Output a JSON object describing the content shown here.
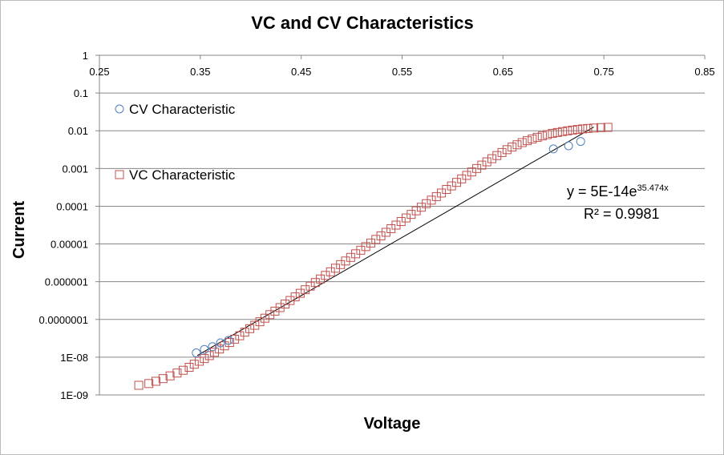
{
  "chart_data": {
    "type": "scatter",
    "title": "VC and CV Characteristics",
    "xlabel": "Voltage",
    "ylabel": "Current",
    "xlim": [
      0.25,
      0.85
    ],
    "x_ticks": [
      0.25,
      0.35,
      0.45,
      0.55,
      0.65,
      0.75,
      0.85
    ],
    "x_tick_labels": [
      "0.25",
      "0.35",
      "0.45",
      "0.55",
      "0.65",
      "0.75",
      "0.85"
    ],
    "ylim": [
      1e-09,
      1
    ],
    "y_scale": "log",
    "y_ticks": [
      1,
      0.1,
      0.01,
      0.001,
      0.0001,
      1e-05,
      1e-06,
      1e-07,
      1e-08,
      1e-09
    ],
    "y_tick_labels": [
      "1",
      "0.1",
      "0.01",
      "0.001",
      "0.0001",
      "0.00001",
      "0.000001",
      "0.0000001",
      "1E-08",
      "1E-09"
    ],
    "x_axis_position": "top",
    "grid": "horizontal",
    "legend_position": "upper-left",
    "series": [
      {
        "name": "CV Characteristic",
        "marker": "circle",
        "color": "#4f81bd",
        "x": [
          0.346,
          0.354,
          0.362,
          0.37,
          0.378,
          0.7,
          0.715,
          0.727
        ],
        "y": [
          1.3e-08,
          1.6e-08,
          1.9e-08,
          2.4e-08,
          2.8e-08,
          0.0033,
          0.004,
          0.0052
        ]
      },
      {
        "name": "VC Characteristic",
        "marker": "square",
        "color": "#c0504d",
        "x": [
          0.289,
          0.299,
          0.306,
          0.313,
          0.32,
          0.327,
          0.333,
          0.339,
          0.344,
          0.349,
          0.354,
          0.359,
          0.364,
          0.369,
          0.374,
          0.379,
          0.384,
          0.389,
          0.394,
          0.399,
          0.404,
          0.409,
          0.414,
          0.419,
          0.424,
          0.429,
          0.434,
          0.439,
          0.444,
          0.449,
          0.454,
          0.459,
          0.464,
          0.469,
          0.474,
          0.479,
          0.484,
          0.489,
          0.494,
          0.499,
          0.504,
          0.509,
          0.514,
          0.519,
          0.524,
          0.529,
          0.534,
          0.539,
          0.544,
          0.549,
          0.554,
          0.559,
          0.564,
          0.569,
          0.574,
          0.579,
          0.584,
          0.589,
          0.594,
          0.599,
          0.604,
          0.609,
          0.614,
          0.619,
          0.624,
          0.629,
          0.634,
          0.639,
          0.644,
          0.649,
          0.654,
          0.659,
          0.664,
          0.669,
          0.674,
          0.679,
          0.684,
          0.689,
          0.694,
          0.699,
          0.704,
          0.709,
          0.714,
          0.719,
          0.724,
          0.729,
          0.734,
          0.74,
          0.747,
          0.754
        ],
        "y": [
          1.8e-09,
          2e-09,
          2.3e-09,
          2.7e-09,
          3.2e-09,
          3.8e-09,
          4.5e-09,
          5.4e-09,
          6.5e-09,
          7.8e-09,
          9.2e-09,
          1.1e-08,
          1.35e-08,
          1.65e-08,
          2e-08,
          2.45e-08,
          3e-08,
          3.7e-08,
          4.6e-08,
          5.7e-08,
          7e-08,
          8.7e-08,
          1.08e-07,
          1.34e-07,
          1.66e-07,
          2.06e-07,
          2.56e-07,
          3.18e-07,
          3.96e-07,
          4.93e-07,
          6.13e-07,
          7.63e-07,
          9.5e-07,
          1.18e-06,
          1.47e-06,
          1.83e-06,
          2.28e-06,
          2.84e-06,
          3.54e-06,
          4.41e-06,
          5.49e-06,
          6.84e-06,
          8.52e-06,
          1.06e-05,
          1.32e-05,
          1.64e-05,
          2.04e-05,
          2.54e-05,
          3.16e-05,
          3.93e-05,
          4.89e-05,
          6.08e-05,
          7.56e-05,
          9.4e-05,
          0.000117,
          0.000145,
          0.00018,
          0.000224,
          0.000278,
          0.000345,
          0.000428,
          0.00053,
          0.000656,
          0.00081,
          0.001,
          0.00123,
          0.0015,
          0.00182,
          0.0022,
          0.00265,
          0.00315,
          0.0037,
          0.00425,
          0.00485,
          0.00545,
          0.00605,
          0.0067,
          0.0073,
          0.0079,
          0.0085,
          0.009,
          0.0095,
          0.00995,
          0.0104,
          0.0108,
          0.0112,
          0.0115,
          0.0118,
          0.0121,
          0.0123
        ]
      }
    ],
    "trendline": {
      "type": "exponential",
      "color": "#000000",
      "a": 5e-14,
      "b": 35.474,
      "x_range": [
        0.347,
        0.74
      ],
      "equation_base": "y = 5E-14e",
      "equation_exponent": "35.474x",
      "r_squared_label": "R² = 0.9981"
    }
  }
}
